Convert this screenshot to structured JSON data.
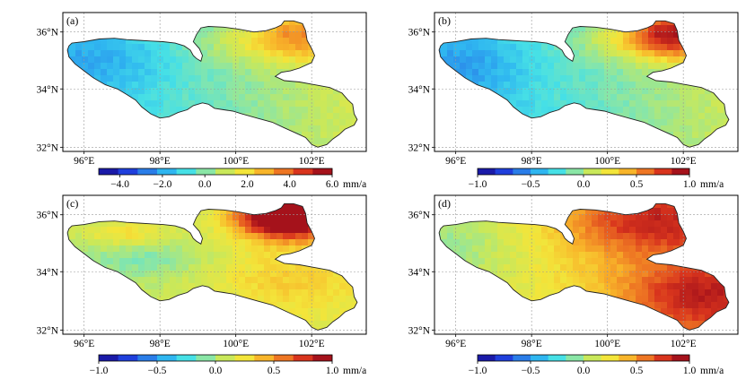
{
  "figure": {
    "panels": [
      {
        "id": "a",
        "label": "(a)",
        "y_ticks": [
          "36°N",
          "34°N",
          "32°N"
        ],
        "x_ticks": [
          "96°E",
          "98°E",
          "100°E",
          "102°E"
        ],
        "colorbar": {
          "tick_labels": [
            "−4.0",
            "−2.0",
            "0.0",
            "2.0",
            "4.0",
            "6.0"
          ],
          "unit": "mm/a",
          "range": [
            -5,
            6
          ],
          "colors": [
            "#1a1aa8",
            "#1f3fdc",
            "#2a7de8",
            "#2fb6f0",
            "#46e0e6",
            "#8ae6a6",
            "#c9e85a",
            "#f3e53a",
            "#f8b52a",
            "#ee7623",
            "#d8341d",
            "#a5121b"
          ]
        },
        "field": "a"
      },
      {
        "id": "b",
        "label": "(b)",
        "y_ticks": [
          "36°N",
          "34°N",
          "32°N"
        ],
        "x_ticks": [
          "96°E",
          "98°E",
          "100°E",
          "102°E"
        ],
        "colorbar": {
          "tick_labels": [
            "−1.0",
            "−0.5",
            "0.0",
            "0.5",
            "1.0"
          ],
          "unit": "mm/a",
          "range": [
            -1,
            1
          ],
          "colors": [
            "#1a1aa8",
            "#1f3fdc",
            "#2a7de8",
            "#2fb6f0",
            "#46e0e6",
            "#8ae6a6",
            "#c9e85a",
            "#f3e53a",
            "#f8b52a",
            "#ee7623",
            "#d8341d",
            "#a5121b"
          ]
        },
        "field": "b"
      },
      {
        "id": "c",
        "label": "(c)",
        "y_ticks": [
          "36°N",
          "34°N",
          "32°N"
        ],
        "x_ticks": [
          "96°E",
          "98°E",
          "100°E",
          "102°E"
        ],
        "colorbar": {
          "tick_labels": [
            "−1.0",
            "−0.5",
            "0.0",
            "0.5",
            "1.0"
          ],
          "unit": "mm/a",
          "range": [
            -1,
            1
          ],
          "colors": [
            "#1a1aa8",
            "#1f3fdc",
            "#2a7de8",
            "#2fb6f0",
            "#46e0e6",
            "#8ae6a6",
            "#c9e85a",
            "#f3e53a",
            "#f8b52a",
            "#ee7623",
            "#d8341d",
            "#a5121b"
          ]
        },
        "field": "c"
      },
      {
        "id": "d",
        "label": "(d)",
        "y_ticks": [
          "36°N",
          "34°N",
          "32°N"
        ],
        "x_ticks": [
          "96°E",
          "98°E",
          "100°E",
          "102°E"
        ],
        "colorbar": {
          "tick_labels": [
            "−1.0",
            "−0.5",
            "0.0",
            "0.5",
            "1.0"
          ],
          "unit": "mm/a",
          "range": [
            -1,
            1
          ],
          "colors": [
            "#1a1aa8",
            "#1f3fdc",
            "#2a7de8",
            "#2fb6f0",
            "#46e0e6",
            "#8ae6a6",
            "#c9e85a",
            "#f3e53a",
            "#f8b52a",
            "#ee7623",
            "#d8341d",
            "#a5121b"
          ]
        },
        "field": "d"
      }
    ]
  }
}
